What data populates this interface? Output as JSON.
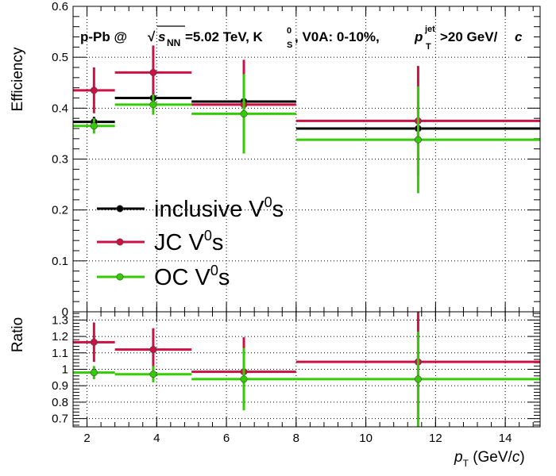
{
  "colors": {
    "inclusive": "#000000",
    "jc": "#cc1144",
    "oc": "#33cc00"
  },
  "chart_data": [
    {
      "type": "scatter",
      "panel": "top",
      "title_parts": {
        "system": "p-Pb @",
        "sqrt": "√",
        "s": "s",
        "nn": "NN",
        "energy": "=5.02 TeV, K",
        "k_sup": "0",
        "k_sub": "S",
        "rest": ", V0A: 0-10%,",
        "pt": "p",
        "pt_sup": "jet",
        "pt_sub": "T",
        "cut": ">20 GeV/",
        "c": "c"
      },
      "ylabel": "Efficiency",
      "xlim": [
        1.6,
        15
      ],
      "ylim": [
        0,
        0.6
      ],
      "yticks": [
        "0",
        "0.1",
        "0.2",
        "0.3",
        "0.4",
        "0.5",
        "0.6"
      ],
      "grid": true,
      "legend_position": "center-left",
      "legend": [
        {
          "key": "inclusive",
          "text": "inclusive V",
          "sup": "0",
          "tail": "s"
        },
        {
          "key": "jc",
          "text": "JC V",
          "sup": "0",
          "tail": "s"
        },
        {
          "key": "oc",
          "text": "OC V",
          "sup": "0",
          "tail": "s"
        }
      ],
      "bins": [
        [
          1.6,
          2.8
        ],
        [
          2.8,
          5
        ],
        [
          5,
          8
        ],
        [
          8,
          15
        ]
      ],
      "centers": [
        2.2,
        3.9,
        6.5,
        11.5
      ],
      "series": [
        {
          "key": "inclusive",
          "values": [
            0.373,
            0.42,
            0.413,
            0.36
          ],
          "errors": [
            0.01,
            0.013,
            0.015,
            0.016
          ]
        },
        {
          "key": "jc",
          "values": [
            0.435,
            0.47,
            0.407,
            0.375
          ],
          "errors": [
            0.045,
            0.053,
            0.088,
            0.108
          ]
        },
        {
          "key": "oc",
          "values": [
            0.365,
            0.407,
            0.389,
            0.338
          ],
          "errors": [
            0.015,
            0.02,
            0.078,
            0.105
          ]
        }
      ]
    },
    {
      "type": "scatter",
      "panel": "bottom",
      "ylabel": "Ratio",
      "xlabel": {
        "p": "p",
        "sub": "T",
        "open": " (GeV/",
        "c": "c",
        "close": ")"
      },
      "xlim": [
        1.6,
        15
      ],
      "ylim": [
        0.65,
        1.35
      ],
      "yticks": [
        "0.7",
        "0.8",
        "0.9",
        "1",
        "1.1",
        "1.2",
        "1.3"
      ],
      "xticks": [
        "2",
        "4",
        "6",
        "8",
        "10",
        "12",
        "14"
      ],
      "grid": true,
      "bins": [
        [
          1.6,
          2.8
        ],
        [
          2.8,
          5
        ],
        [
          5,
          8
        ],
        [
          8,
          15
        ]
      ],
      "centers": [
        2.2,
        3.9,
        6.5,
        11.5
      ],
      "series": [
        {
          "key": "jc",
          "values": [
            1.165,
            1.12,
            0.985,
            1.045
          ],
          "errors": [
            0.12,
            0.13,
            0.21,
            0.34
          ]
        },
        {
          "key": "oc",
          "values": [
            0.98,
            0.97,
            0.94,
            0.94
          ],
          "errors": [
            0.04,
            0.05,
            0.19,
            0.29
          ]
        }
      ]
    }
  ]
}
